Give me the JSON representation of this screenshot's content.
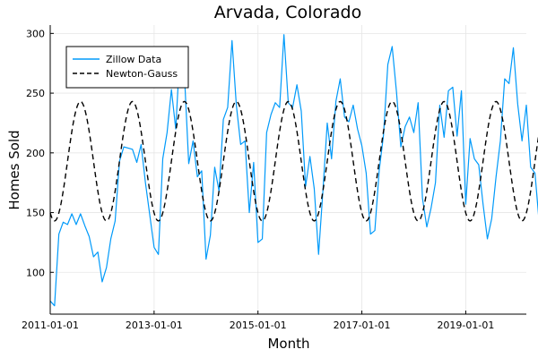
{
  "chart_data": {
    "type": "line",
    "title": "Arvada, Colorado",
    "xlabel": "Month",
    "ylabel": "Homes Sold",
    "x_start": "2011-01-01",
    "x_end": "2020-01-01",
    "xlim": [
      "2011-01-01",
      "2020-03-01"
    ],
    "ylim": [
      65,
      307
    ],
    "x_ticks": [
      "2011-01-01",
      "2013-01-01",
      "2015-01-01",
      "2017-01-01",
      "2019-01-01"
    ],
    "y_ticks": [
      100,
      150,
      200,
      250,
      300
    ],
    "grid": true,
    "legend_position": "top-left",
    "series": [
      {
        "name": "Zillow Data",
        "color": "#009AFA",
        "dash": "solid",
        "values": [
          76,
          72,
          132,
          142,
          140,
          149,
          140,
          149,
          139,
          130,
          113,
          117,
          92,
          104,
          128,
          143,
          193,
          205,
          204,
          203,
          192,
          207,
          175,
          148,
          121,
          115,
          195,
          217,
          253,
          220,
          287,
          266,
          191,
          210,
          180,
          185,
          111,
          131,
          188,
          168,
          228,
          238,
          294,
          240,
          207,
          210,
          150,
          192,
          125,
          128,
          217,
          232,
          242,
          238,
          299,
          242,
          238,
          257,
          235,
          172,
          197,
          170,
          115,
          168,
          225,
          195,
          243,
          262,
          230,
          226,
          240,
          220,
          206,
          183,
          132,
          135,
          185,
          215,
          274,
          289,
          251,
          205,
          222,
          230,
          217,
          242,
          162,
          138,
          154,
          175,
          240,
          213,
          252,
          255,
          214,
          252,
          157,
          212,
          195,
          190,
          157,
          128,
          145,
          180,
          210,
          262,
          258,
          288,
          241,
          210,
          240,
          188,
          183,
          140
        ]
      },
      {
        "name": "Newton-Gauss",
        "color": "#000000",
        "dash": "dashed",
        "amplitude": 50,
        "offset": 193,
        "period_months": 12,
        "peak_month": 7
      }
    ]
  }
}
